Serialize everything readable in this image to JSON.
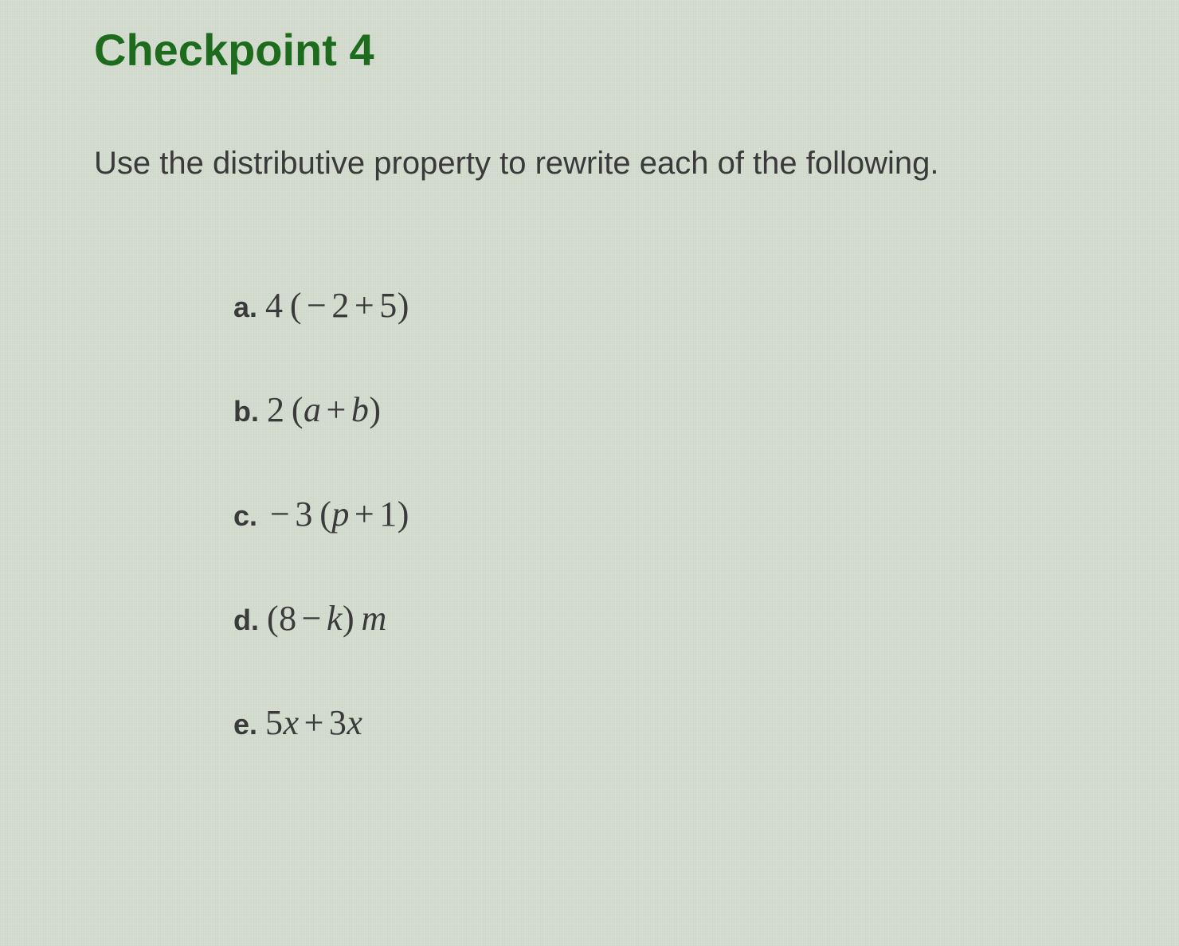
{
  "title": "Checkpoint 4",
  "instruction": "Use the distributive property to rewrite each of the following.",
  "colors": {
    "title": "#1d6b1d",
    "text": "#3a3a3a",
    "background": "#d4ddd0"
  },
  "typography": {
    "title_fontsize": 56,
    "instruction_fontsize": 40,
    "label_fontsize": 36,
    "expr_fontsize": 44,
    "title_font": "Arial",
    "math_font": "Georgia"
  },
  "problems": [
    {
      "label": "a.",
      "tokens": [
        {
          "t": "num",
          "v": "4"
        },
        {
          "t": "thin",
          "v": ""
        },
        {
          "t": "paren",
          "v": "("
        },
        {
          "t": "op",
          "v": "−"
        },
        {
          "t": "num",
          "v": "2"
        },
        {
          "t": "op",
          "v": "+"
        },
        {
          "t": "num",
          "v": "5"
        },
        {
          "t": "paren",
          "v": ")"
        }
      ]
    },
    {
      "label": "b.",
      "tokens": [
        {
          "t": "num",
          "v": "2"
        },
        {
          "t": "thin",
          "v": ""
        },
        {
          "t": "paren",
          "v": "("
        },
        {
          "t": "var",
          "v": "a"
        },
        {
          "t": "op",
          "v": "+"
        },
        {
          "t": "var",
          "v": "b"
        },
        {
          "t": "paren",
          "v": ")"
        }
      ]
    },
    {
      "label": "c.",
      "tokens": [
        {
          "t": "op",
          "v": "−"
        },
        {
          "t": "num",
          "v": "3"
        },
        {
          "t": "thin",
          "v": ""
        },
        {
          "t": "paren",
          "v": "("
        },
        {
          "t": "var",
          "v": "p"
        },
        {
          "t": "op",
          "v": "+"
        },
        {
          "t": "num",
          "v": "1"
        },
        {
          "t": "paren",
          "v": ")"
        }
      ]
    },
    {
      "label": "d.",
      "tokens": [
        {
          "t": "paren",
          "v": "("
        },
        {
          "t": "num",
          "v": "8"
        },
        {
          "t": "op",
          "v": "−"
        },
        {
          "t": "var",
          "v": "k"
        },
        {
          "t": "paren",
          "v": ")"
        },
        {
          "t": "thin",
          "v": ""
        },
        {
          "t": "var",
          "v": "m"
        }
      ]
    },
    {
      "label": "e.",
      "tokens": [
        {
          "t": "num",
          "v": "5"
        },
        {
          "t": "var",
          "v": "x"
        },
        {
          "t": "op",
          "v": "+"
        },
        {
          "t": "num",
          "v": "3"
        },
        {
          "t": "var",
          "v": "x"
        }
      ]
    }
  ]
}
